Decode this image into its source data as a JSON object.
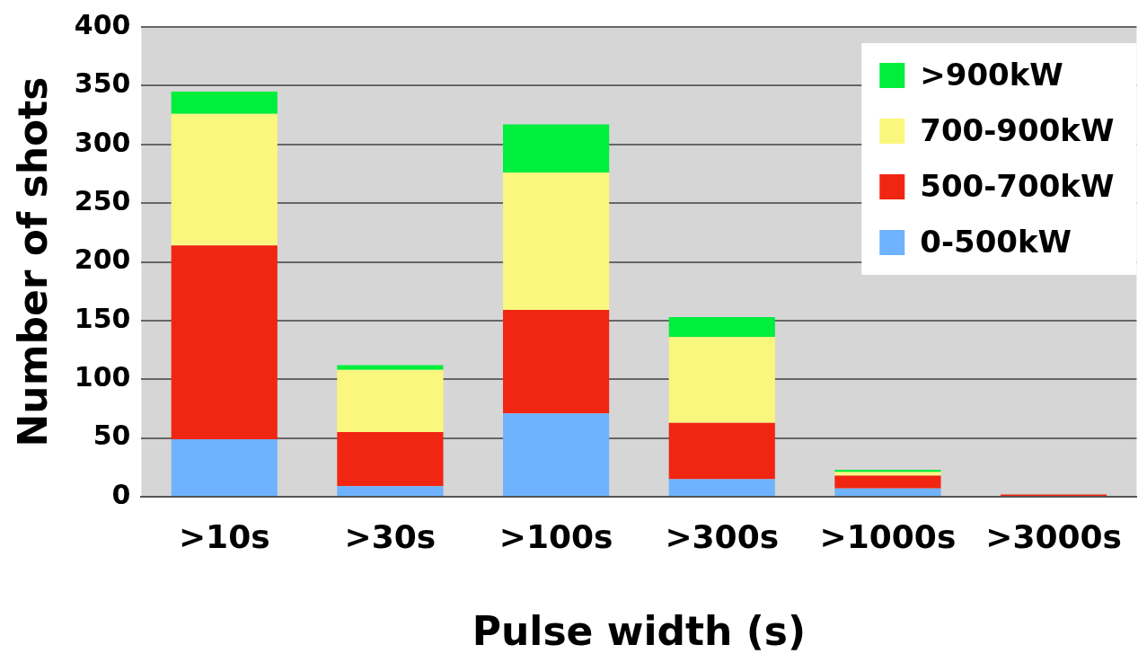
{
  "chart_data": {
    "type": "bar",
    "stacked": true,
    "xlabel": "Pulse width (s)",
    "ylabel": "Number of shots",
    "categories": [
      ">10s",
      ">30s",
      ">100s",
      ">300s",
      ">1000s",
      ">3000s"
    ],
    "series": [
      {
        "name": "0-500kW",
        "color": "#6fb3ff",
        "values": [
          49,
          9,
          71,
          15,
          7,
          0
        ]
      },
      {
        "name": "500-700kW",
        "color": "#f02612",
        "values": [
          165,
          46,
          88,
          48,
          11,
          2
        ]
      },
      {
        "name": "700-900kW",
        "color": "#fbf67d",
        "values": [
          112,
          53,
          117,
          73,
          3,
          0
        ]
      },
      {
        "name": ">900kW",
        "color": "#00ee3c",
        "values": [
          19,
          4,
          41,
          17,
          2,
          0
        ]
      }
    ],
    "ylim": [
      0,
      400
    ],
    "yticks": [
      0,
      50,
      100,
      150,
      200,
      250,
      300,
      350,
      400
    ],
    "grid": "y",
    "legend": "top right"
  }
}
